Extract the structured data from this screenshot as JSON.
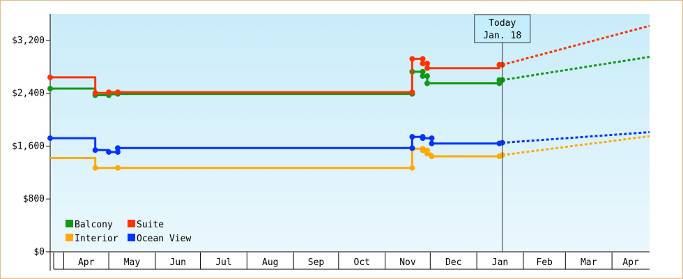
{
  "chart_data": {
    "type": "line",
    "title": "",
    "xlabel": "",
    "ylabel": "",
    "ylim": [
      0,
      3600
    ],
    "y_ticks": [
      {
        "value": 0,
        "label": "$0"
      },
      {
        "value": 800,
        "label": "$800"
      },
      {
        "value": 1600,
        "label": "$1,600"
      },
      {
        "value": 2400,
        "label": "$2,400"
      },
      {
        "value": 3200,
        "label": "$3,200"
      }
    ],
    "x_range": [
      "2024-03-23",
      "2025-04-26"
    ],
    "x_ticks": [
      {
        "date": "2024-04-01",
        "label": "Apr"
      },
      {
        "date": "2024-05-01",
        "label": "May"
      },
      {
        "date": "2024-06-01",
        "label": "Jun"
      },
      {
        "date": "2024-07-01",
        "label": "Jul"
      },
      {
        "date": "2024-08-01",
        "label": "Aug"
      },
      {
        "date": "2024-09-01",
        "label": "Sep"
      },
      {
        "date": "2024-10-01",
        "label": "Oct"
      },
      {
        "date": "2024-11-01",
        "label": "Nov"
      },
      {
        "date": "2024-12-01",
        "label": "Dec"
      },
      {
        "date": "2025-01-01",
        "label": "Jan"
      },
      {
        "date": "2025-02-01",
        "label": "Feb"
      },
      {
        "date": "2025-03-01",
        "label": "Mar"
      },
      {
        "date": "2025-04-01",
        "label": "Apr"
      }
    ],
    "today": {
      "date": "2025-01-18",
      "label_line1": "Today",
      "label_line2": "Jan. 18"
    },
    "background_gradient": [
      "#c9ecf9",
      "#eaf7fd"
    ],
    "legend": {
      "placement": "bottom-left"
    },
    "grid": false,
    "series": [
      {
        "name": "Balcony",
        "color": "#119911",
        "points": [
          [
            "2024-03-23",
            2470
          ],
          [
            "2024-04-22",
            2470
          ],
          [
            "2024-04-22",
            2370
          ],
          [
            "2024-05-01",
            2370
          ],
          [
            "2024-05-01",
            2385
          ],
          [
            "2024-05-07",
            2385
          ],
          [
            "2024-05-07",
            2390
          ],
          [
            "2024-11-19",
            2390
          ],
          [
            "2024-11-19",
            2725
          ],
          [
            "2024-11-26",
            2725
          ],
          [
            "2024-11-26",
            2660
          ],
          [
            "2024-11-29",
            2660
          ],
          [
            "2024-11-29",
            2550
          ],
          [
            "2025-01-16",
            2550
          ],
          [
            "2025-01-16",
            2600
          ],
          [
            "2025-01-18",
            2600
          ]
        ],
        "markers": [
          [
            "2024-03-23",
            2470
          ],
          [
            "2024-04-22",
            2370
          ],
          [
            "2024-05-01",
            2370
          ],
          [
            "2024-05-07",
            2390
          ],
          [
            "2024-11-19",
            2390
          ],
          [
            "2024-11-19",
            2725
          ],
          [
            "2024-11-26",
            2725
          ],
          [
            "2024-11-26",
            2660
          ],
          [
            "2024-11-29",
            2660
          ],
          [
            "2024-11-29",
            2550
          ],
          [
            "2025-01-16",
            2550
          ],
          [
            "2025-01-16",
            2600
          ],
          [
            "2025-01-18",
            2600
          ]
        ],
        "projection": [
          [
            "2025-01-18",
            2600
          ],
          [
            "2025-04-26",
            2950
          ]
        ]
      },
      {
        "name": "Suite",
        "color": "#ff3300",
        "points": [
          [
            "2024-03-23",
            2640
          ],
          [
            "2024-04-22",
            2640
          ],
          [
            "2024-04-22",
            2405
          ],
          [
            "2024-05-01",
            2405
          ],
          [
            "2024-05-01",
            2415
          ],
          [
            "2024-11-19",
            2415
          ],
          [
            "2024-11-19",
            2920
          ],
          [
            "2024-11-26",
            2920
          ],
          [
            "2024-11-26",
            2850
          ],
          [
            "2024-11-29",
            2850
          ],
          [
            "2024-11-29",
            2780
          ],
          [
            "2025-01-16",
            2780
          ],
          [
            "2025-01-16",
            2830
          ],
          [
            "2025-01-18",
            2830
          ]
        ],
        "markers": [
          [
            "2024-03-23",
            2640
          ],
          [
            "2024-04-22",
            2405
          ],
          [
            "2024-05-01",
            2415
          ],
          [
            "2024-05-07",
            2415
          ],
          [
            "2024-11-19",
            2415
          ],
          [
            "2024-11-19",
            2920
          ],
          [
            "2024-11-26",
            2920
          ],
          [
            "2024-11-26",
            2850
          ],
          [
            "2024-11-29",
            2850
          ],
          [
            "2024-11-29",
            2780
          ],
          [
            "2025-01-16",
            2830
          ],
          [
            "2025-01-18",
            2830
          ]
        ],
        "projection": [
          [
            "2025-01-18",
            2830
          ],
          [
            "2025-04-26",
            3420
          ]
        ]
      },
      {
        "name": "Interior",
        "color": "#ffaa00",
        "points": [
          [
            "2024-03-23",
            1420
          ],
          [
            "2024-04-22",
            1420
          ],
          [
            "2024-04-22",
            1270
          ],
          [
            "2024-11-19",
            1270
          ],
          [
            "2024-11-19",
            1560
          ],
          [
            "2024-11-26",
            1560
          ],
          [
            "2024-11-26",
            1535
          ],
          [
            "2024-11-29",
            1535
          ],
          [
            "2024-11-29",
            1485
          ],
          [
            "2024-12-02",
            1485
          ],
          [
            "2024-12-02",
            1445
          ],
          [
            "2025-01-16",
            1445
          ],
          [
            "2025-01-16",
            1465
          ],
          [
            "2025-01-18",
            1465
          ]
        ],
        "markers": [
          [
            "2024-04-22",
            1270
          ],
          [
            "2024-05-07",
            1270
          ],
          [
            "2024-11-19",
            1270
          ],
          [
            "2024-11-19",
            1560
          ],
          [
            "2024-11-26",
            1560
          ],
          [
            "2024-11-26",
            1535
          ],
          [
            "2024-11-29",
            1535
          ],
          [
            "2024-11-29",
            1485
          ],
          [
            "2024-12-02",
            1445
          ],
          [
            "2025-01-16",
            1445
          ],
          [
            "2025-01-18",
            1465
          ]
        ],
        "projection": [
          [
            "2025-01-18",
            1465
          ],
          [
            "2025-04-26",
            1750
          ]
        ]
      },
      {
        "name": "Ocean View",
        "color": "#0033ff",
        "points": [
          [
            "2024-03-23",
            1720
          ],
          [
            "2024-04-22",
            1720
          ],
          [
            "2024-04-22",
            1540
          ],
          [
            "2024-05-01",
            1540
          ],
          [
            "2024-05-01",
            1510
          ],
          [
            "2024-05-07",
            1510
          ],
          [
            "2024-05-07",
            1570
          ],
          [
            "2024-11-19",
            1570
          ],
          [
            "2024-11-19",
            1740
          ],
          [
            "2024-11-26",
            1740
          ],
          [
            "2024-11-26",
            1720
          ],
          [
            "2024-12-02",
            1720
          ],
          [
            "2024-12-02",
            1640
          ],
          [
            "2025-01-16",
            1640
          ],
          [
            "2025-01-16",
            1650
          ],
          [
            "2025-01-18",
            1650
          ]
        ],
        "markers": [
          [
            "2024-03-23",
            1720
          ],
          [
            "2024-04-22",
            1540
          ],
          [
            "2024-05-01",
            1510
          ],
          [
            "2024-05-07",
            1510
          ],
          [
            "2024-05-07",
            1570
          ],
          [
            "2024-11-19",
            1570
          ],
          [
            "2024-11-19",
            1740
          ],
          [
            "2024-11-26",
            1740
          ],
          [
            "2024-11-26",
            1720
          ],
          [
            "2024-12-02",
            1720
          ],
          [
            "2024-12-02",
            1640
          ],
          [
            "2025-01-16",
            1640
          ],
          [
            "2025-01-18",
            1650
          ]
        ],
        "projection": [
          [
            "2025-01-18",
            1650
          ],
          [
            "2025-04-26",
            1810
          ]
        ]
      }
    ]
  }
}
